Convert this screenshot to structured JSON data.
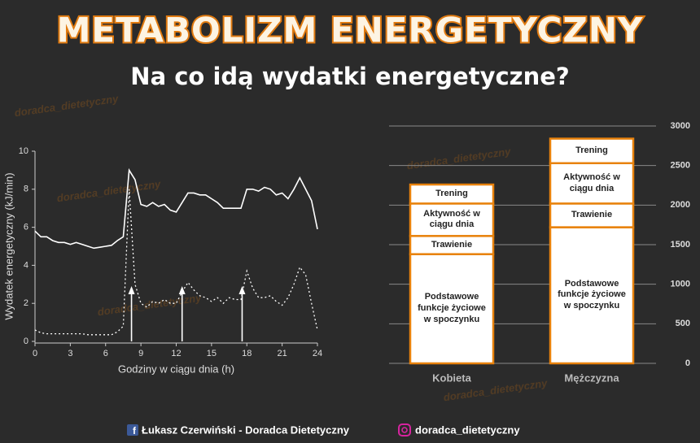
{
  "header": {
    "title": "METABOLIZM ENERGETYCZNY",
    "subtitle": "Na co idą wydatki energetyczne?"
  },
  "watermark": "doradca_dietetyczny",
  "footer": {
    "author": "Łukasz Czerwiński - Doradca Dietetyczny",
    "instagram": "doradca_dietetyczny"
  },
  "chart_data": [
    {
      "type": "line",
      "x_label": "Godziny w ciągu dnia (h)",
      "y_label": "Wydatek energetyczny (kJ/min)",
      "x": [
        0,
        0.5,
        1,
        1.5,
        2,
        2.5,
        3,
        3.5,
        4,
        4.5,
        5,
        5.5,
        6,
        6.5,
        7,
        7.5,
        8,
        8.5,
        9,
        9.5,
        10,
        10.5,
        11,
        11.5,
        12,
        12.5,
        13,
        13.5,
        14,
        14.5,
        15,
        15.5,
        16,
        16.5,
        17,
        17.5,
        18,
        18.5,
        19,
        19.5,
        20,
        20.5,
        21,
        21.5,
        22,
        22.5,
        23,
        23.5,
        24
      ],
      "series": [
        {
          "color": "#ffffff",
          "dash": false,
          "values": [
            5.8,
            5.5,
            5.5,
            5.3,
            5.2,
            5.2,
            5.1,
            5.2,
            5.1,
            5.0,
            4.9,
            4.95,
            5.0,
            5.05,
            5.3,
            5.5,
            9.0,
            8.5,
            7.2,
            7.1,
            7.3,
            7.1,
            7.2,
            6.9,
            6.8,
            7.3,
            7.8,
            7.8,
            7.7,
            7.7,
            7.5,
            7.3,
            7.0,
            7.0,
            7.0,
            7.0,
            8.0,
            8.0,
            7.9,
            8.1,
            8.0,
            7.7,
            7.8,
            7.5,
            8.0,
            8.6,
            8.0,
            7.4,
            5.9
          ]
        },
        {
          "color": "#ffffff",
          "dash": true,
          "values": [
            0.6,
            0.45,
            0.4,
            0.4,
            0.4,
            0.4,
            0.4,
            0.4,
            0.4,
            0.35,
            0.35,
            0.35,
            0.35,
            0.35,
            0.5,
            0.8,
            8.0,
            3.0,
            2.0,
            1.8,
            2.1,
            2.0,
            2.2,
            2.0,
            2.0,
            2.6,
            3.1,
            2.7,
            2.4,
            2.3,
            2.1,
            2.3,
            2.0,
            2.3,
            2.2,
            2.2,
            3.7,
            2.8,
            2.3,
            2.3,
            2.4,
            2.1,
            1.9,
            2.3,
            3.0,
            3.9,
            3.5,
            2.0,
            0.6
          ]
        }
      ],
      "markers_x": [
        8.2,
        12.5,
        17.6
      ],
      "xlim": [
        0,
        24
      ],
      "xticks": [
        0,
        3,
        6,
        9,
        12,
        15,
        18,
        21,
        24
      ],
      "ylim": [
        0,
        10
      ],
      "yticks": [
        0,
        2,
        4,
        6,
        8,
        10
      ]
    },
    {
      "type": "bar",
      "stacked": true,
      "categories": [
        "Kobieta",
        "Mężczyzna"
      ],
      "series": [
        {
          "name": "Podstawowe funkcje życiowe w spoczynku",
          "color": "#ffffff",
          "values": [
            1380,
            1720
          ]
        },
        {
          "name": "Trawienie",
          "color": "#ffffff",
          "values": [
            230,
            300
          ]
        },
        {
          "name": "Aktywność w ciągu dnia",
          "color": "#ffffff",
          "values": [
            410,
            510
          ]
        },
        {
          "name": "Trening",
          "color": "#ffffff",
          "values": [
            240,
            310
          ]
        }
      ],
      "edge_color": "#e8820c",
      "ylim": [
        0,
        3000
      ],
      "yticks": [
        0,
        500,
        1000,
        1500,
        2000,
        2500,
        3000
      ],
      "grid": true
    }
  ]
}
